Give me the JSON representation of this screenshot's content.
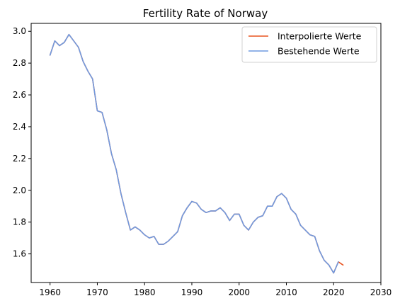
{
  "chart_data": {
    "type": "line",
    "title": "Fertility Rate of Norway",
    "xlabel": "",
    "ylabel": "",
    "xlim": [
      1956,
      2030
    ],
    "ylim": [
      1.42,
      3.05
    ],
    "xticks": [
      1960,
      1970,
      1980,
      1990,
      2000,
      2010,
      2020,
      2030
    ],
    "yticks": [
      1.6,
      1.8,
      2.0,
      2.2,
      2.4,
      2.6,
      2.8,
      3.0
    ],
    "grid": false,
    "legend_position": "top-right",
    "series": [
      {
        "name": "Interpolierte Werte",
        "color": "#e8531f",
        "x": [
          1960,
          1961,
          1962,
          1963,
          1964,
          1965,
          1966,
          1967,
          1968,
          1969,
          1970,
          1971,
          1972,
          1973,
          1974,
          1975,
          1976,
          1977,
          1978,
          1979,
          1980,
          1981,
          1982,
          1983,
          1984,
          1985,
          1986,
          1987,
          1988,
          1989,
          1990,
          1991,
          1992,
          1993,
          1994,
          1995,
          1996,
          1997,
          1998,
          1999,
          2000,
          2001,
          2002,
          2003,
          2004,
          2005,
          2006,
          2007,
          2008,
          2009,
          2010,
          2011,
          2012,
          2013,
          2014,
          2015,
          2016,
          2017,
          2018,
          2019,
          2020,
          2021,
          2022
        ],
        "y": [
          2.85,
          2.94,
          2.91,
          2.93,
          2.98,
          2.94,
          2.9,
          2.81,
          2.75,
          2.7,
          2.5,
          2.49,
          2.38,
          2.23,
          2.13,
          1.98,
          1.86,
          1.75,
          1.77,
          1.75,
          1.72,
          1.7,
          1.71,
          1.66,
          1.66,
          1.68,
          1.71,
          1.74,
          1.84,
          1.89,
          1.93,
          1.92,
          1.88,
          1.86,
          1.87,
          1.87,
          1.89,
          1.86,
          1.81,
          1.85,
          1.85,
          1.78,
          1.75,
          1.8,
          1.83,
          1.84,
          1.9,
          1.9,
          1.96,
          1.98,
          1.95,
          1.88,
          1.85,
          1.78,
          1.75,
          1.72,
          1.71,
          1.62,
          1.56,
          1.53,
          1.48,
          1.55,
          1.53
        ]
      },
      {
        "name": "Bestehende Werte",
        "color": "#6f9ae0",
        "x": [
          1960,
          1961,
          1962,
          1963,
          1964,
          1965,
          1966,
          1967,
          1968,
          1969,
          1970,
          1971,
          1972,
          1973,
          1974,
          1975,
          1976,
          1977,
          1978,
          1979,
          1980,
          1981,
          1982,
          1983,
          1984,
          1985,
          1986,
          1987,
          1988,
          1989,
          1990,
          1991,
          1992,
          1993,
          1994,
          1995,
          1996,
          1997,
          1998,
          1999,
          2000,
          2001,
          2002,
          2003,
          2004,
          2005,
          2006,
          2007,
          2008,
          2009,
          2010,
          2011,
          2012,
          2013,
          2014,
          2015,
          2016,
          2017,
          2018,
          2019,
          2020,
          2021
        ],
        "y": [
          2.85,
          2.94,
          2.91,
          2.93,
          2.98,
          2.94,
          2.9,
          2.81,
          2.75,
          2.7,
          2.5,
          2.49,
          2.38,
          2.23,
          2.13,
          1.98,
          1.86,
          1.75,
          1.77,
          1.75,
          1.72,
          1.7,
          1.71,
          1.66,
          1.66,
          1.68,
          1.71,
          1.74,
          1.84,
          1.89,
          1.93,
          1.92,
          1.88,
          1.86,
          1.87,
          1.87,
          1.89,
          1.86,
          1.81,
          1.85,
          1.85,
          1.78,
          1.75,
          1.8,
          1.83,
          1.84,
          1.9,
          1.9,
          1.96,
          1.98,
          1.95,
          1.88,
          1.85,
          1.78,
          1.75,
          1.72,
          1.71,
          1.62,
          1.56,
          1.53,
          1.48,
          1.55
        ]
      }
    ]
  }
}
